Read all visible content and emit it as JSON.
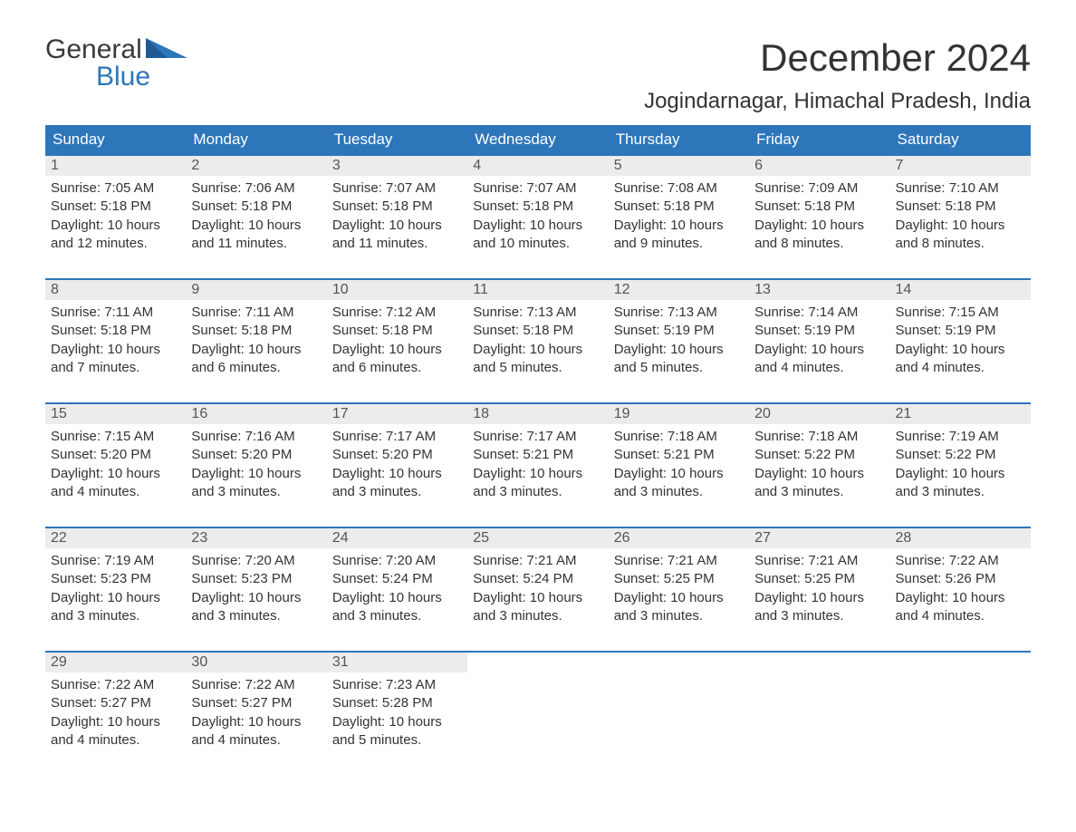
{
  "logo": {
    "word1": "General",
    "word2": "Blue"
  },
  "title": "December 2024",
  "location": "Jogindarnagar, Himachal Pradesh, India",
  "colors": {
    "header_bg": "#2d76ba",
    "header_fg": "#ffffff",
    "daynum_bg": "#ececec",
    "text": "#333333",
    "row_border": "#2d76ba"
  },
  "weekdays": [
    "Sunday",
    "Monday",
    "Tuesday",
    "Wednesday",
    "Thursday",
    "Friday",
    "Saturday"
  ],
  "weeks": [
    [
      {
        "n": "1",
        "sr": "7:05 AM",
        "ss": "5:18 PM",
        "dl": "10 hours and 12 minutes."
      },
      {
        "n": "2",
        "sr": "7:06 AM",
        "ss": "5:18 PM",
        "dl": "10 hours and 11 minutes."
      },
      {
        "n": "3",
        "sr": "7:07 AM",
        "ss": "5:18 PM",
        "dl": "10 hours and 11 minutes."
      },
      {
        "n": "4",
        "sr": "7:07 AM",
        "ss": "5:18 PM",
        "dl": "10 hours and 10 minutes."
      },
      {
        "n": "5",
        "sr": "7:08 AM",
        "ss": "5:18 PM",
        "dl": "10 hours and 9 minutes."
      },
      {
        "n": "6",
        "sr": "7:09 AM",
        "ss": "5:18 PM",
        "dl": "10 hours and 8 minutes."
      },
      {
        "n": "7",
        "sr": "7:10 AM",
        "ss": "5:18 PM",
        "dl": "10 hours and 8 minutes."
      }
    ],
    [
      {
        "n": "8",
        "sr": "7:11 AM",
        "ss": "5:18 PM",
        "dl": "10 hours and 7 minutes."
      },
      {
        "n": "9",
        "sr": "7:11 AM",
        "ss": "5:18 PM",
        "dl": "10 hours and 6 minutes."
      },
      {
        "n": "10",
        "sr": "7:12 AM",
        "ss": "5:18 PM",
        "dl": "10 hours and 6 minutes."
      },
      {
        "n": "11",
        "sr": "7:13 AM",
        "ss": "5:18 PM",
        "dl": "10 hours and 5 minutes."
      },
      {
        "n": "12",
        "sr": "7:13 AM",
        "ss": "5:19 PM",
        "dl": "10 hours and 5 minutes."
      },
      {
        "n": "13",
        "sr": "7:14 AM",
        "ss": "5:19 PM",
        "dl": "10 hours and 4 minutes."
      },
      {
        "n": "14",
        "sr": "7:15 AM",
        "ss": "5:19 PM",
        "dl": "10 hours and 4 minutes."
      }
    ],
    [
      {
        "n": "15",
        "sr": "7:15 AM",
        "ss": "5:20 PM",
        "dl": "10 hours and 4 minutes."
      },
      {
        "n": "16",
        "sr": "7:16 AM",
        "ss": "5:20 PM",
        "dl": "10 hours and 3 minutes."
      },
      {
        "n": "17",
        "sr": "7:17 AM",
        "ss": "5:20 PM",
        "dl": "10 hours and 3 minutes."
      },
      {
        "n": "18",
        "sr": "7:17 AM",
        "ss": "5:21 PM",
        "dl": "10 hours and 3 minutes."
      },
      {
        "n": "19",
        "sr": "7:18 AM",
        "ss": "5:21 PM",
        "dl": "10 hours and 3 minutes."
      },
      {
        "n": "20",
        "sr": "7:18 AM",
        "ss": "5:22 PM",
        "dl": "10 hours and 3 minutes."
      },
      {
        "n": "21",
        "sr": "7:19 AM",
        "ss": "5:22 PM",
        "dl": "10 hours and 3 minutes."
      }
    ],
    [
      {
        "n": "22",
        "sr": "7:19 AM",
        "ss": "5:23 PM",
        "dl": "10 hours and 3 minutes."
      },
      {
        "n": "23",
        "sr": "7:20 AM",
        "ss": "5:23 PM",
        "dl": "10 hours and 3 minutes."
      },
      {
        "n": "24",
        "sr": "7:20 AM",
        "ss": "5:24 PM",
        "dl": "10 hours and 3 minutes."
      },
      {
        "n": "25",
        "sr": "7:21 AM",
        "ss": "5:24 PM",
        "dl": "10 hours and 3 minutes."
      },
      {
        "n": "26",
        "sr": "7:21 AM",
        "ss": "5:25 PM",
        "dl": "10 hours and 3 minutes."
      },
      {
        "n": "27",
        "sr": "7:21 AM",
        "ss": "5:25 PM",
        "dl": "10 hours and 3 minutes."
      },
      {
        "n": "28",
        "sr": "7:22 AM",
        "ss": "5:26 PM",
        "dl": "10 hours and 4 minutes."
      }
    ],
    [
      {
        "n": "29",
        "sr": "7:22 AM",
        "ss": "5:27 PM",
        "dl": "10 hours and 4 minutes."
      },
      {
        "n": "30",
        "sr": "7:22 AM",
        "ss": "5:27 PM",
        "dl": "10 hours and 4 minutes."
      },
      {
        "n": "31",
        "sr": "7:23 AM",
        "ss": "5:28 PM",
        "dl": "10 hours and 5 minutes."
      },
      null,
      null,
      null,
      null
    ]
  ],
  "labels": {
    "sunrise": "Sunrise: ",
    "sunset": "Sunset: ",
    "daylight": "Daylight: "
  }
}
